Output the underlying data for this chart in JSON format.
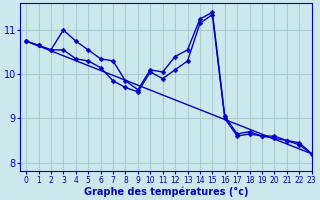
{
  "xlabel": "Graphe des températures (°c)",
  "background_color": "#cce8ec",
  "grid_color": "#aacdd4",
  "line_color": "#0000cc",
  "xlim": [
    -0.5,
    23
  ],
  "ylim": [
    7.8,
    11.6
  ],
  "yticks": [
    8,
    9,
    10,
    11
  ],
  "xticks": [
    0,
    1,
    2,
    3,
    4,
    5,
    6,
    7,
    8,
    9,
    10,
    11,
    12,
    13,
    14,
    15,
    16,
    17,
    18,
    19,
    20,
    21,
    22,
    23
  ],
  "line1_x": [
    0,
    1,
    2,
    3,
    4,
    5,
    6,
    7,
    8,
    9,
    10,
    11,
    12,
    13,
    14,
    15,
    16,
    17,
    18,
    19,
    20,
    21,
    22,
    23
  ],
  "line1_y": [
    10.75,
    10.65,
    10.55,
    11.0,
    10.75,
    10.55,
    10.35,
    10.3,
    9.85,
    9.65,
    10.1,
    10.05,
    10.4,
    10.55,
    11.25,
    11.4,
    9.05,
    8.65,
    8.7,
    8.6,
    8.6,
    8.5,
    8.45,
    8.2
  ],
  "line2_x": [
    0,
    1,
    2,
    3,
    4,
    5,
    6,
    7,
    8,
    9,
    10,
    11,
    12,
    13,
    14,
    15,
    16,
    17,
    18,
    19,
    20,
    21,
    22,
    23
  ],
  "line2_y": [
    10.75,
    10.65,
    10.55,
    10.55,
    10.35,
    10.3,
    10.15,
    9.85,
    9.7,
    9.6,
    10.05,
    9.9,
    10.1,
    10.3,
    11.15,
    11.35,
    9.0,
    8.6,
    8.65,
    8.6,
    8.55,
    8.5,
    8.4,
    8.2
  ],
  "line3_x": [
    0,
    23
  ],
  "line3_y": [
    10.75,
    8.2
  ]
}
